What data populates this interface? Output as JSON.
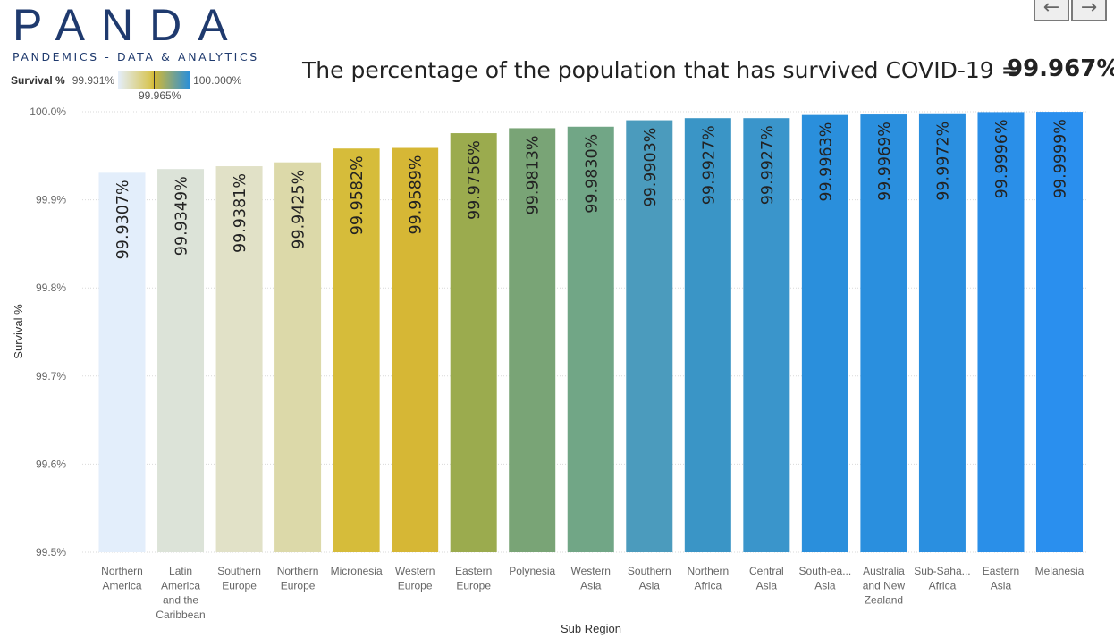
{
  "logo": {
    "word": "PANDA",
    "subtitle": "PANDEMICS - DATA & ANALYTICS"
  },
  "nav": {
    "prev_icon": "arrow-left-icon",
    "next_icon": "arrow-right-icon"
  },
  "legend": {
    "title": "Survival %",
    "min": "99.931%",
    "mid": "99.965%",
    "max": "100.000%"
  },
  "headline": {
    "text": "The percentage of the population that has survived COVID-19 =",
    "value": "99.967%"
  },
  "chart_data": {
    "type": "bar",
    "xlabel": "Sub Region",
    "ylabel": "Survival %",
    "ylim": [
      99.5,
      100.0
    ],
    "y_ticks": [
      "100.0%",
      "99.9%",
      "99.8%",
      "99.7%",
      "99.6%",
      "99.5%"
    ],
    "y_tick_values": [
      100.0,
      99.9,
      99.8,
      99.7,
      99.6,
      99.5
    ],
    "categories": [
      [
        "Northern",
        "America"
      ],
      [
        "Latin",
        "America",
        "and the",
        "Caribbean"
      ],
      [
        "Southern",
        "Europe"
      ],
      [
        "Northern",
        "Europe"
      ],
      [
        "Micronesia"
      ],
      [
        "Western",
        "Europe"
      ],
      [
        "Eastern",
        "Europe"
      ],
      [
        "Polynesia"
      ],
      [
        "Western",
        "Asia"
      ],
      [
        "Southern",
        "Asia"
      ],
      [
        "Northern",
        "Africa"
      ],
      [
        "Central",
        "Asia"
      ],
      [
        "South-ea...",
        "Asia"
      ],
      [
        "Australia",
        "and New",
        "Zealand"
      ],
      [
        "Sub-Saha...",
        "Africa"
      ],
      [
        "Eastern",
        "Asia"
      ],
      [
        "Melanesia"
      ]
    ],
    "values": [
      99.9307,
      99.9349,
      99.9381,
      99.9425,
      99.9582,
      99.9589,
      99.9756,
      99.9813,
      99.983,
      99.9903,
      99.9927,
      99.9927,
      99.9963,
      99.9969,
      99.9972,
      99.9996,
      99.9999
    ],
    "data_labels": [
      "99.9307%",
      "99.9349%",
      "99.9381%",
      "99.9425%",
      "99.9582%",
      "99.9589%",
      "99.9756%",
      "99.9813%",
      "99.9830%",
      "99.9903%",
      "99.9927%",
      "99.9927%",
      "99.9963%",
      "99.9969%",
      "99.9972%",
      "99.9996%",
      "99.9999%"
    ],
    "colors": [
      "#e3eefb",
      "#dce3d8",
      "#e1e1c7",
      "#dcd9a9",
      "#d6bc3a",
      "#d6b735",
      "#9bab4e",
      "#79a476",
      "#71a686",
      "#4b9bbd",
      "#3a95c6",
      "#3a95cb",
      "#2a8fdc",
      "#2a8fde",
      "#2a8fe0",
      "#2a8fe8",
      "#2a8fee"
    ],
    "grid": true
  }
}
